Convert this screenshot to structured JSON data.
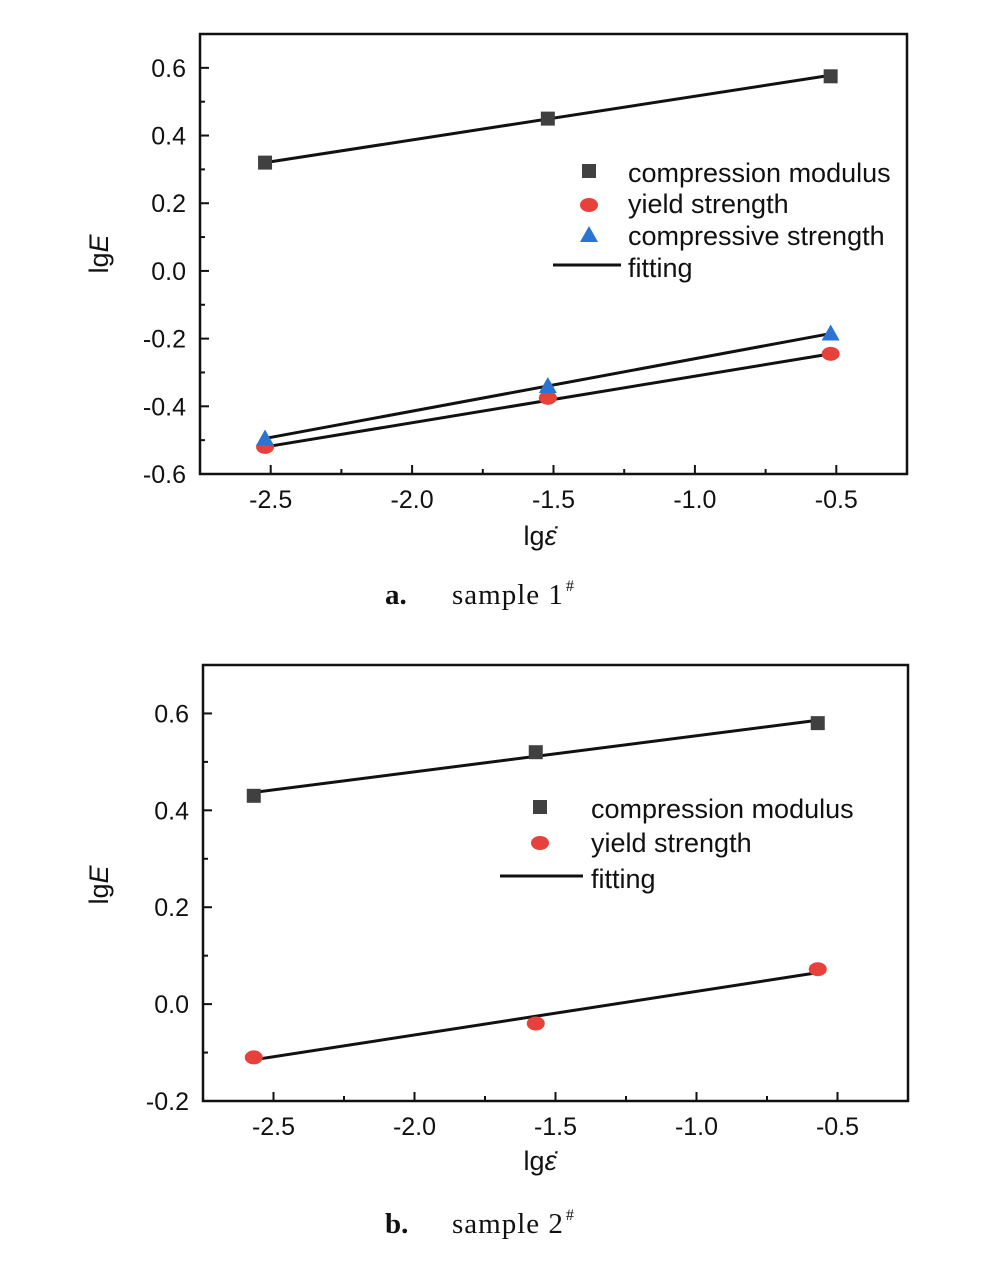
{
  "chart_data": [
    {
      "type": "scatter",
      "xlabel": "lgε̇",
      "ylabel": "lgE",
      "xlim": [
        -2.75,
        -0.25
      ],
      "ylim": [
        -0.6,
        0.7
      ],
      "xticks": [
        -2.5,
        -2.0,
        -1.5,
        -1.0,
        -0.5
      ],
      "xtick_labels": [
        "-2.5",
        "-2.0",
        "-1.5",
        "-1.0",
        "-0.5"
      ],
      "yticks": [
        -0.6,
        -0.4,
        -0.2,
        0.0,
        0.2,
        0.4,
        0.6
      ],
      "ytick_labels": [
        "-0.6",
        "-0.4",
        "-0.2",
        "0.0",
        "0.2",
        "0.4",
        "0.6"
      ],
      "legend_position": "right",
      "series": [
        {
          "name": "compression modulus",
          "marker": "square",
          "color": "#404040",
          "x": [
            -2.52,
            -1.52,
            -0.52
          ],
          "y": [
            0.32,
            0.45,
            0.575
          ],
          "fit": {
            "x": [
              -2.52,
              -0.52
            ],
            "y": [
              0.32,
              0.578
            ]
          }
        },
        {
          "name": "yield strength",
          "marker": "circle",
          "color": "#e8403a",
          "x": [
            -2.52,
            -1.52,
            -0.52
          ],
          "y": [
            -0.52,
            -0.375,
            -0.245
          ],
          "fit": {
            "x": [
              -2.52,
              -0.52
            ],
            "y": [
              -0.52,
              -0.245
            ]
          }
        },
        {
          "name": "compressive strength",
          "marker": "triangle",
          "color": "#2a74d4",
          "x": [
            -2.52,
            -1.52,
            -0.52
          ],
          "y": [
            -0.495,
            -0.34,
            -0.185
          ],
          "fit": {
            "x": [
              -2.52,
              -0.52
            ],
            "y": [
              -0.495,
              -0.185
            ]
          }
        }
      ],
      "fitting_label": "fitting"
    },
    {
      "type": "scatter",
      "xlabel": "lgε̇",
      "ylabel": "lgE",
      "xlim": [
        -2.75,
        -0.25
      ],
      "ylim": [
        -0.2,
        0.7
      ],
      "xticks": [
        -2.5,
        -2.0,
        -1.5,
        -1.0,
        -0.5
      ],
      "xtick_labels": [
        "-2.5",
        "-2.0",
        "-1.5",
        "-1.0",
        "-0.5"
      ],
      "yticks": [
        -0.2,
        0.0,
        0.2,
        0.4,
        0.6
      ],
      "ytick_labels": [
        "-0.2",
        "0.0",
        "0.2",
        "0.4",
        "0.6"
      ],
      "legend_position": "right",
      "series": [
        {
          "name": "compression modulus",
          "marker": "square",
          "color": "#404040",
          "x": [
            -2.57,
            -1.57,
            -0.57
          ],
          "y": [
            0.43,
            0.52,
            0.58
          ],
          "fit": {
            "x": [
              -2.57,
              -0.57
            ],
            "y": [
              0.437,
              0.586
            ]
          }
        },
        {
          "name": "yield strength",
          "marker": "circle",
          "color": "#e8403a",
          "x": [
            -2.57,
            -1.57,
            -0.57
          ],
          "y": [
            -0.11,
            -0.04,
            0.072
          ],
          "fit": {
            "x": [
              -2.57,
              -0.57
            ],
            "y": [
              -0.115,
              0.065
            ]
          }
        }
      ],
      "fitting_label": "fitting"
    }
  ],
  "captions": [
    {
      "letter": "a.",
      "text": "sample 1",
      "sup": "#"
    },
    {
      "letter": "b.",
      "text": "sample 2",
      "sup": "#"
    }
  ]
}
